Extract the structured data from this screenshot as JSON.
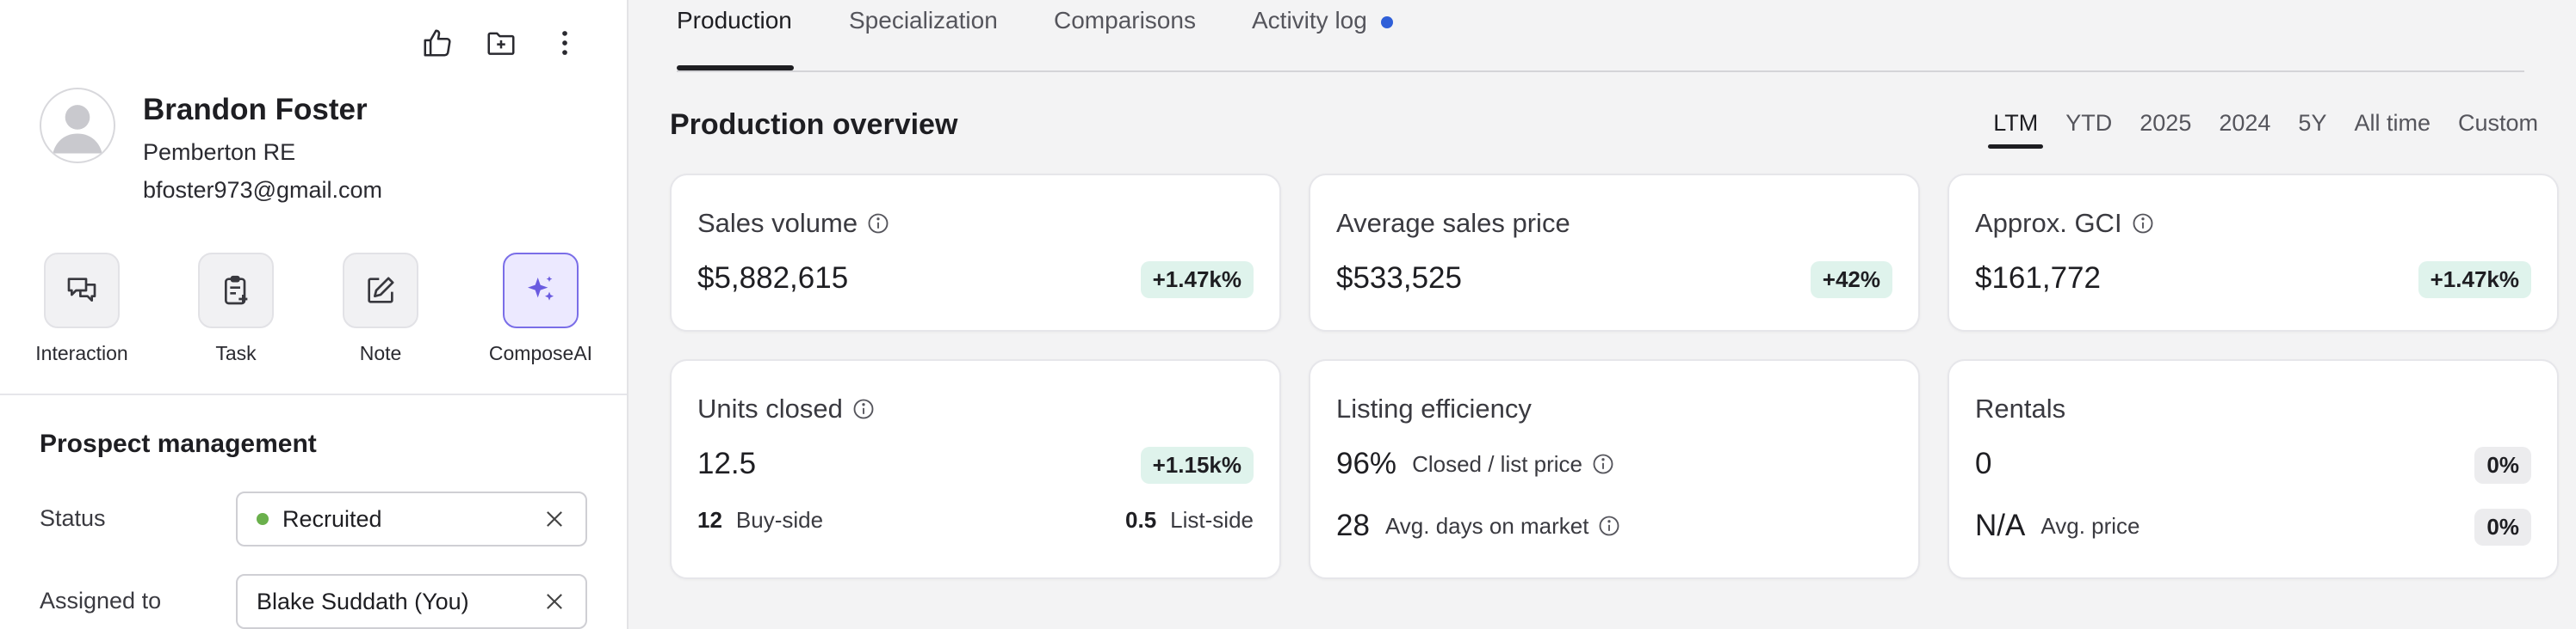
{
  "contact": {
    "name": "Brandon Foster",
    "company": "Pemberton RE",
    "email": "bfoster973@gmail.com"
  },
  "top_actions": [
    "thumbs-up-icon",
    "folder-add-icon",
    "more-vertical-icon"
  ],
  "quick_actions": [
    {
      "label": "Interaction",
      "icon": "chat-bubbles-icon"
    },
    {
      "label": "Task",
      "icon": "clipboard-add-icon"
    },
    {
      "label": "Note",
      "icon": "edit-note-icon"
    },
    {
      "label": "ComposeAI",
      "icon": "sparkle-icon"
    }
  ],
  "prospect_management": {
    "title": "Prospect management",
    "status_label": "Status",
    "status_value": "Recruited",
    "status_color": "#6ab04c",
    "assigned_label": "Assigned to",
    "assigned_value": "Blake Suddath (You)"
  },
  "tabs": [
    {
      "label": "Production",
      "active": true
    },
    {
      "label": "Specialization"
    },
    {
      "label": "Comparisons"
    },
    {
      "label": "Activity log",
      "badge_color": "#2f5fd8"
    }
  ],
  "overview": {
    "title": "Production overview",
    "periods": [
      "LTM",
      "YTD",
      "2025",
      "2024",
      "5Y",
      "All time",
      "Custom"
    ],
    "active_period": "LTM"
  },
  "cards": {
    "sales_volume": {
      "title": "Sales volume",
      "value": "$5,882,615",
      "change": "+1.47k%"
    },
    "avg_price": {
      "title": "Average sales price",
      "value": "$533,525",
      "change": "+42%"
    },
    "gci": {
      "title": "Approx. GCI",
      "value": "$161,772",
      "change": "+1.47k%"
    },
    "units": {
      "title": "Units closed",
      "value": "12.5",
      "change": "+1.15k%",
      "buy_value": "12",
      "buy_label": "Buy-side",
      "list_value": "0.5",
      "list_label": "List-side"
    },
    "listing": {
      "title": "Listing efficiency",
      "pct_value": "96%",
      "pct_label": "Closed / list price",
      "dom_value": "28",
      "dom_label": "Avg. days on market"
    },
    "rentals": {
      "title": "Rentals",
      "value": "0",
      "change": "0%",
      "avg_value": "N/A",
      "avg_label": "Avg. price",
      "avg_change": "0%"
    }
  },
  "colors": {
    "accent_ai": "#6a5be0",
    "positive_pill": "#dff3ec",
    "neutral_pill": "#ececee"
  }
}
